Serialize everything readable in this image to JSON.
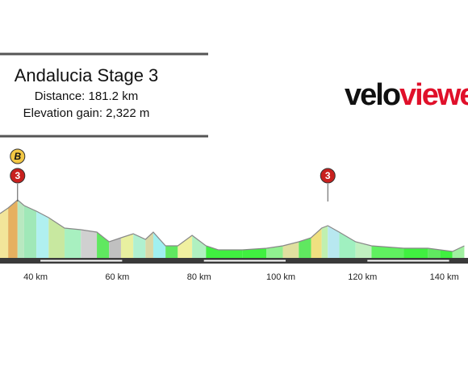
{
  "chart_data": {
    "type": "area",
    "title": "Andalucia Stage 3",
    "subtitle": [
      "Distance: 181.2 km",
      "Elevation gain: 2,322 m"
    ],
    "logo": [
      "velo",
      "viewer"
    ],
    "x": [
      31.3,
      33.3,
      35.6,
      37.2,
      40.2,
      43.2,
      47.1,
      51.1,
      55.0,
      58.0,
      60.9,
      63.9,
      66.9,
      68.8,
      71.8,
      74.8,
      78.3,
      81.7,
      84.7,
      90.6,
      96.5,
      100.5,
      104.4,
      107.4,
      110.0,
      111.5,
      114.3,
      118.3,
      122.2,
      130.1,
      136.0,
      139.0,
      142.0,
      144.9
    ],
    "elevation": [
      550,
      620,
      720,
      650,
      580,
      500,
      370,
      350,
      320,
      200,
      250,
      300,
      230,
      320,
      150,
      150,
      280,
      150,
      100,
      100,
      120,
      150,
      200,
      250,
      370,
      400,
      320,
      200,
      150,
      120,
      120,
      100,
      80,
      150
    ],
    "segment_colors": [
      "#f2e59a",
      "#e6b060",
      "#b8e8c0",
      "#a0e8b8",
      "#b0f0f0",
      "#c8e8a0",
      "#a8f0c0",
      "#d0d0d0",
      "#60e860",
      "#c0c0c0",
      "#e8f0a0",
      "#b0f0d0",
      "#d8d8a8",
      "#a0f0f0",
      "#60e860",
      "#f0f0a0",
      "#b0f0c0",
      "#40f040",
      "#40f040",
      "#40f040",
      "#90f090",
      "#e0e0a0",
      "#60e860",
      "#f0e080",
      "#c0f0b0",
      "#b8e8f0",
      "#a0f0c0",
      "#c0f0c0",
      "#60f060",
      "#40f040",
      "#60e860",
      "#40f040",
      "#a0f0a0"
    ],
    "climbs": [
      {
        "label": "3",
        "x": 35.6
      },
      {
        "label": "3",
        "x": 111.5
      }
    ],
    "sprints": [
      {
        "label": "B",
        "x": 35.6
      }
    ],
    "xlim": [
      31.3,
      145.8
    ],
    "ylim": [
      0,
      1000
    ],
    "xticks": [
      {
        "value": 40,
        "label": "40 km"
      },
      {
        "value": 60,
        "label": "60 km"
      },
      {
        "value": 80,
        "label": "80 km"
      },
      {
        "value": 100,
        "label": "100 km"
      },
      {
        "value": 120,
        "label": "120 km"
      },
      {
        "value": 140,
        "label": "140 km"
      }
    ]
  }
}
